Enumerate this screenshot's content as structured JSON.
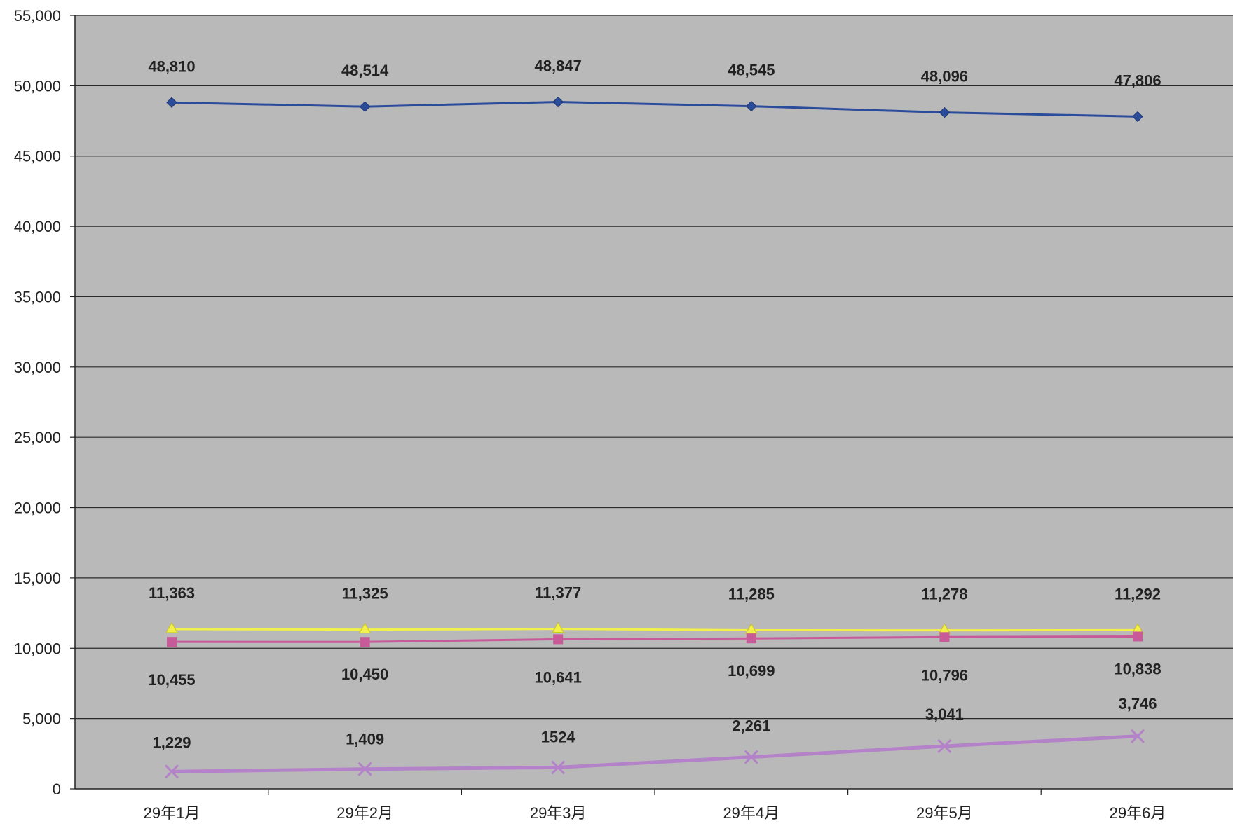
{
  "chart_data": {
    "type": "line",
    "title": "",
    "xlabel": "",
    "ylabel": "",
    "categories": [
      "29年1月",
      "29年2月",
      "29年3月",
      "29年4月",
      "29年5月",
      "29年6月"
    ],
    "ylim": [
      0,
      55000
    ],
    "yticks": [
      0,
      5000,
      10000,
      15000,
      20000,
      25000,
      30000,
      35000,
      40000,
      45000,
      50000,
      55000
    ],
    "ytick_labels": [
      "0",
      "5,000",
      "10,000",
      "15,000",
      "20,000",
      "25,000",
      "30,000",
      "35,000",
      "40,000",
      "45,000",
      "50,000",
      "55,000"
    ],
    "grid": true,
    "legend": "none",
    "plot_background": "#b9b9b9",
    "gridline_color": "#2a2a2a",
    "series": [
      {
        "values": [
          48810,
          48514,
          48847,
          48545,
          48096,
          47806
        ],
        "labels": [
          "48,810",
          "48,514",
          "48,847",
          "48,545",
          "48,096",
          "47,806"
        ],
        "label_position": "above",
        "color": "#2b4c9b",
        "marker": "diamond"
      },
      {
        "values": [
          11363,
          11325,
          11377,
          11285,
          11278,
          11292
        ],
        "labels": [
          "11,363",
          "11,325",
          "11,377",
          "11,285",
          "11,278",
          "11,292"
        ],
        "label_position": "above",
        "color": "#f2f04a",
        "marker": "triangle"
      },
      {
        "values": [
          10455,
          10450,
          10641,
          10699,
          10796,
          10838
        ],
        "labels": [
          "10,455",
          "10,450",
          "10,641",
          "10,699",
          "10,796",
          "10,838"
        ],
        "label_position": "below",
        "color": "#c85a9a",
        "marker": "square"
      },
      {
        "values": [
          1229,
          1409,
          1524,
          2261,
          3041,
          3746
        ],
        "labels": [
          "1,229",
          "1,409",
          "1524",
          "2,261",
          "3,041",
          "3,746"
        ],
        "label_position": "above",
        "color": "#b482c8",
        "marker": "x"
      }
    ]
  }
}
